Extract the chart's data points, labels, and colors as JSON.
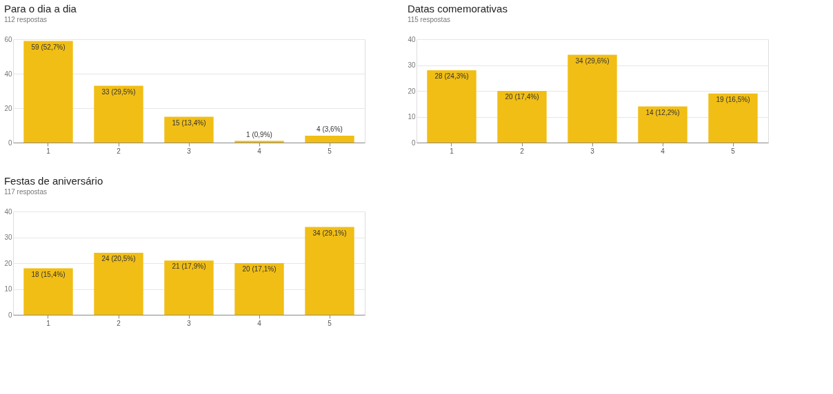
{
  "chart_data": [
    {
      "type": "bar",
      "title": "Para o dia a dia",
      "subtitle": "112 respostas",
      "categories": [
        "1",
        "2",
        "3",
        "4",
        "5"
      ],
      "values": [
        59,
        33,
        15,
        1,
        4
      ],
      "value_labels": [
        "59 (52,7%)",
        "33 (29,5%)",
        "15 (13,4%)",
        "1 (0,9%)",
        "4 (3,6%)"
      ],
      "color": "#f1be15",
      "ylim": [
        0,
        60
      ],
      "yticks": [
        0,
        20,
        40,
        60
      ],
      "grid": "y"
    },
    {
      "type": "bar",
      "title": "Datas comemorativas",
      "subtitle": "115 respostas",
      "categories": [
        "1",
        "2",
        "3",
        "4",
        "5"
      ],
      "values": [
        28,
        20,
        34,
        14,
        19
      ],
      "value_labels": [
        "28 (24,3%)",
        "20 (17,4%)",
        "34 (29,6%)",
        "14 (12,2%)",
        "19 (16,5%)"
      ],
      "color": "#f1be15",
      "ylim": [
        0,
        40
      ],
      "yticks": [
        0,
        10,
        20,
        30,
        40
      ],
      "grid": "y"
    },
    {
      "type": "bar",
      "title": "Festas de aniversário",
      "subtitle": "117 respostas",
      "categories": [
        "1",
        "2",
        "3",
        "4",
        "5"
      ],
      "values": [
        18,
        24,
        21,
        20,
        34
      ],
      "value_labels": [
        "18 (15,4%)",
        "24 (20,5%)",
        "21 (17,9%)",
        "20 (17,1%)",
        "34 (29,1%)"
      ],
      "color": "#f1be15",
      "ylim": [
        0,
        40
      ],
      "yticks": [
        0,
        10,
        20,
        30,
        40
      ],
      "grid": "y"
    }
  ]
}
